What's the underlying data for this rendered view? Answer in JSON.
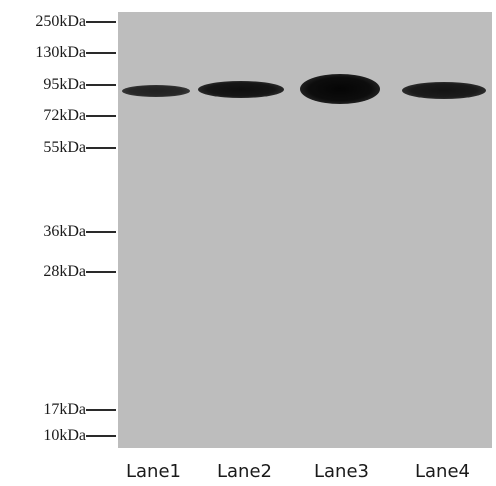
{
  "markers": [
    {
      "label": "250kDa"
    },
    {
      "label": "130kDa"
    },
    {
      "label": "95kDa"
    },
    {
      "label": "72kDa"
    },
    {
      "label": "55kDa"
    },
    {
      "label": "36kDa"
    },
    {
      "label": "28kDa"
    },
    {
      "label": "17kDa"
    },
    {
      "label": "10kDa"
    }
  ],
  "lanes": [
    {
      "label": "Lane1",
      "band_intensity": 0.7
    },
    {
      "label": "Lane2",
      "band_intensity": 0.85
    },
    {
      "label": "Lane3",
      "band_intensity": 1.0
    },
    {
      "label": "Lane4",
      "band_intensity": 0.8
    }
  ],
  "colors": {
    "membrane": "#bdbdbd",
    "band": "#0a0a0a",
    "background": "#ffffff"
  }
}
